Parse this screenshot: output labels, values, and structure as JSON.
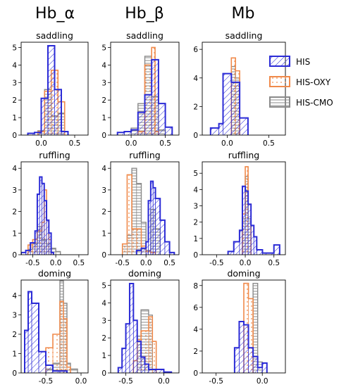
{
  "colors": {
    "HIS": "#2b2bd6",
    "HIS-OXY": "#f08a4b",
    "HIS-CMO": "#8a8a8a"
  },
  "legend": {
    "placement": "upper-right",
    "entries": [
      "HIS",
      "HIS-OXY",
      "HIS-CMO"
    ]
  },
  "column_titles": [
    "Hb_α",
    "Hb_β",
    "Mb"
  ],
  "chart_data": [
    {
      "type": "histogram",
      "column": "Hb_α",
      "title": "saddling",
      "xlim": [
        -0.3,
        0.7
      ],
      "ylim": [
        0,
        5.3
      ],
      "xticks": [
        0.0,
        0.5
      ],
      "xtick_labels": [
        "0.0",
        "0.5"
      ],
      "yticks": [
        0,
        1,
        2,
        3,
        4,
        5
      ],
      "ytick_labels": [
        "0",
        "1",
        "2",
        "3",
        "4",
        "5"
      ],
      "series": [
        {
          "name": "HIS",
          "edges": [
            -0.2,
            -0.1,
            0.0,
            0.1,
            0.2,
            0.3,
            0.4
          ],
          "values": [
            0.1,
            0.15,
            2.1,
            5.1,
            2.6,
            0.2
          ]
        },
        {
          "name": "HIS-OXY",
          "edges": [
            -0.05,
            0.05,
            0.15,
            0.25,
            0.35
          ],
          "values": [
            0.2,
            2.5,
            3.7,
            1.9
          ]
        },
        {
          "name": "HIS-CMO",
          "edges": [
            -0.05,
            0.05,
            0.15,
            0.25,
            0.35
          ],
          "values": [
            0.25,
            2.6,
            1.1,
            1.25
          ]
        }
      ]
    },
    {
      "type": "histogram",
      "column": "Hb_β",
      "title": "saddling",
      "xlim": [
        -0.3,
        0.7
      ],
      "ylim": [
        0,
        5.3
      ],
      "xticks": [
        0.0,
        0.5
      ],
      "xtick_labels": [
        "0.0",
        "0.5"
      ],
      "yticks": [
        0,
        1,
        2,
        3,
        4,
        5
      ],
      "ytick_labels": [
        "0",
        "1",
        "2",
        "3",
        "4",
        "5"
      ],
      "series": [
        {
          "name": "HIS",
          "edges": [
            -0.2,
            -0.1,
            0.0,
            0.1,
            0.2,
            0.3,
            0.4,
            0.5,
            0.6
          ],
          "values": [
            0.15,
            0.2,
            0.3,
            1.3,
            2.3,
            4.3,
            1.8,
            0.45
          ]
        },
        {
          "name": "HIS-OXY",
          "edges": [
            0.1,
            0.2,
            0.3,
            0.35,
            0.4
          ],
          "values": [
            0.2,
            4.0,
            5.0,
            0.2
          ]
        },
        {
          "name": "HIS-CMO",
          "edges": [
            0.0,
            0.1,
            0.2,
            0.3,
            0.4,
            0.5
          ],
          "values": [
            0.4,
            1.8,
            4.5,
            2.2,
            0.3
          ]
        }
      ]
    },
    {
      "type": "histogram",
      "column": "Mb",
      "title": "saddling",
      "xlim": [
        -0.3,
        0.7
      ],
      "ylim": [
        0,
        6.5
      ],
      "xticks": [
        0.0,
        0.5
      ],
      "xtick_labels": [
        "0.0",
        "0.5"
      ],
      "yticks": [
        0,
        2,
        4,
        6
      ],
      "ytick_labels": [
        "0",
        "2",
        "4",
        "6"
      ],
      "series": [
        {
          "name": "HIS",
          "edges": [
            -0.2,
            -0.1,
            -0.05,
            0.05,
            0.15,
            0.25
          ],
          "values": [
            0.5,
            0.8,
            4.3,
            3.7,
            1.2
          ]
        },
        {
          "name": "HIS-OXY",
          "edges": [
            0.05,
            0.1,
            0.15
          ],
          "values": [
            5.4,
            4.5
          ]
        },
        {
          "name": "HIS-CMO",
          "edges": [
            0.05,
            0.1,
            0.15
          ],
          "values": [
            4.8,
            4.0
          ]
        }
      ]
    },
    {
      "type": "histogram",
      "column": "Hb_α",
      "title": "ruffling",
      "xlim": [
        -0.75,
        0.7
      ],
      "ylim": [
        0,
        4.3
      ],
      "xticks": [
        -0.5,
        0.0,
        0.5
      ],
      "xtick_labels": [
        "-0.5",
        "0.0",
        "0.5"
      ],
      "yticks": [
        0,
        1,
        2,
        3,
        4
      ],
      "ytick_labels": [
        "0",
        "1",
        "2",
        "3",
        "4"
      ],
      "series": [
        {
          "name": "HIS",
          "edges": [
            -0.75,
            -0.65,
            -0.55,
            -0.45,
            -0.4,
            -0.35,
            -0.3,
            -0.25,
            -0.2,
            -0.15,
            -0.1,
            -0.05
          ],
          "values": [
            0.1,
            0.2,
            0.55,
            1.1,
            2.8,
            3.6,
            3.3,
            2.5,
            1.6,
            1.0,
            0.1
          ]
        },
        {
          "name": "HIS-OXY",
          "edges": [
            -0.6,
            -0.5,
            -0.4,
            -0.3,
            -0.25,
            -0.2,
            -0.15,
            -0.1
          ],
          "values": [
            0.45,
            0.7,
            1.1,
            1.5,
            3.0,
            1.6,
            0.7
          ]
        },
        {
          "name": "HIS-CMO",
          "edges": [
            -0.6,
            -0.5,
            -0.4,
            -0.3,
            -0.2,
            -0.1,
            0.0,
            0.1
          ],
          "values": [
            0.25,
            0.5,
            1.3,
            0.7,
            0.5,
            0.3,
            0.15
          ]
        }
      ]
    },
    {
      "type": "histogram",
      "column": "Hb_β",
      "title": "ruffling",
      "xlim": [
        -0.75,
        0.7
      ],
      "ylim": [
        0,
        4.3
      ],
      "xticks": [
        -0.5,
        0.0,
        0.5
      ],
      "xtick_labels": [
        "-0.5",
        "0.0",
        "0.5"
      ],
      "yticks": [
        0,
        1,
        2,
        3,
        4
      ],
      "ytick_labels": [
        "0",
        "1",
        "2",
        "3",
        "4"
      ],
      "series": [
        {
          "name": "HIS",
          "edges": [
            -0.2,
            -0.1,
            0.0,
            0.05,
            0.1,
            0.15,
            0.2,
            0.3,
            0.4,
            0.5,
            0.6
          ],
          "values": [
            0.2,
            0.3,
            0.6,
            2.5,
            3.4,
            3.1,
            2.6,
            1.6,
            0.6,
            0.1
          ]
        },
        {
          "name": "HIS-OXY",
          "edges": [
            -0.5,
            -0.4,
            -0.3,
            -0.2,
            -0.1,
            0.0,
            0.1,
            0.2
          ],
          "values": [
            0.5,
            3.7,
            1.2,
            1.2,
            0.4,
            0.15,
            0.1
          ]
        },
        {
          "name": "HIS-CMO",
          "edges": [
            -0.5,
            -0.4,
            -0.3,
            -0.2,
            -0.1,
            0.0,
            0.1,
            0.2,
            0.3
          ],
          "values": [
            0.5,
            0.9,
            4.0,
            3.3,
            1.5,
            0.2,
            2.1,
            1.2
          ]
        }
      ]
    },
    {
      "type": "histogram",
      "column": "Mb",
      "title": "ruffling",
      "xlim": [
        -0.75,
        0.7
      ],
      "ylim": [
        0,
        5.7
      ],
      "xticks": [
        -0.5,
        0.0,
        0.5
      ],
      "xtick_labels": [
        "-0.5",
        "0.0",
        "0.5"
      ],
      "yticks": [
        0,
        1,
        2,
        3,
        4,
        5
      ],
      "ytick_labels": [
        "0",
        "1",
        "2",
        "3",
        "4",
        "5"
      ],
      "series": [
        {
          "name": "HIS",
          "edges": [
            -0.3,
            -0.2,
            -0.1,
            -0.05,
            0.0,
            0.05,
            0.1,
            0.15,
            0.2,
            0.3,
            0.5,
            0.6
          ],
          "values": [
            0.2,
            0.8,
            1.5,
            4.2,
            3.9,
            3.1,
            1.8,
            1.1,
            0.3,
            0.1,
            0.6
          ]
        },
        {
          "name": "HIS-OXY",
          "edges": [
            -0.05,
            0.0,
            0.05,
            0.1
          ],
          "values": [
            2.5,
            5.4,
            3.1
          ]
        },
        {
          "name": "HIS-CMO",
          "edges": [
            -0.05,
            0.0,
            0.05,
            0.1
          ],
          "values": [
            2.2,
            4.8,
            2.2
          ]
        }
      ]
    },
    {
      "type": "histogram",
      "column": "Hb_α",
      "title": "doming",
      "xlim": [
        -0.85,
        0.1
      ],
      "ylim": [
        0,
        4.8
      ],
      "xticks": [
        -0.5,
        0.0
      ],
      "xtick_labels": [
        "-0.5",
        "0.0"
      ],
      "yticks": [
        0,
        1,
        2,
        3,
        4
      ],
      "ytick_labels": [
        "0",
        "1",
        "2",
        "3",
        "4"
      ],
      "series": [
        {
          "name": "HIS",
          "edges": [
            -0.8,
            -0.75,
            -0.7,
            -0.6,
            -0.5,
            -0.4,
            -0.3,
            -0.2
          ],
          "values": [
            2.2,
            4.2,
            3.6,
            1.1,
            0.4,
            0.1,
            0.1
          ]
        },
        {
          "name": "HIS-OXY",
          "edges": [
            -0.5,
            -0.4,
            -0.3,
            -0.25,
            -0.2,
            -0.15
          ],
          "values": [
            1.3,
            2.0,
            3.7,
            2.8,
            0.3
          ]
        },
        {
          "name": "HIS-CMO",
          "edges": [
            -0.5,
            -0.4,
            -0.3,
            -0.25,
            -0.2,
            -0.15,
            -0.05
          ],
          "values": [
            0.2,
            0.5,
            4.75,
            3.6,
            0.5,
            0.2
          ]
        }
      ]
    },
    {
      "type": "histogram",
      "column": "Hb_β",
      "title": "doming",
      "xlim": [
        -0.7,
        0.2
      ],
      "ylim": [
        0,
        5.3
      ],
      "xticks": [
        -0.5,
        0.0
      ],
      "xtick_labels": [
        "-0.5",
        "0.0"
      ],
      "yticks": [
        0,
        1,
        2,
        3,
        4,
        5
      ],
      "ytick_labels": [
        "0",
        "1",
        "2",
        "3",
        "4",
        "5"
      ],
      "series": [
        {
          "name": "HIS",
          "edges": [
            -0.6,
            -0.55,
            -0.5,
            -0.45,
            -0.4,
            -0.35,
            -0.3,
            -0.25,
            -0.2,
            -0.1,
            0.0,
            0.1
          ],
          "values": [
            0.3,
            1.4,
            2.8,
            5.1,
            3.0,
            1.8,
            0.9,
            0.5,
            0.2,
            0.2,
            0.05
          ]
        },
        {
          "name": "HIS-OXY",
          "edges": [
            -0.4,
            -0.35,
            -0.3,
            -0.2,
            -0.15,
            -0.1
          ],
          "values": [
            0.7,
            1.9,
            2.4,
            3.2,
            1.8
          ]
        },
        {
          "name": "HIS-CMO",
          "edges": [
            -0.35,
            -0.3,
            -0.2,
            -0.15,
            -0.1
          ],
          "values": [
            2.1,
            3.6,
            3.3,
            0.2
          ]
        }
      ]
    },
    {
      "type": "histogram",
      "column": "Mb",
      "title": "doming",
      "xlim": [
        -0.65,
        0.25
      ],
      "ylim": [
        0,
        8.5
      ],
      "xticks": [
        -0.5,
        0.0
      ],
      "xtick_labels": [
        "-0.5",
        "0.0"
      ],
      "yticks": [
        0,
        2,
        4,
        6,
        8
      ],
      "ytick_labels": [
        "0",
        "2",
        "4",
        "6",
        "8"
      ],
      "series": [
        {
          "name": "HIS",
          "edges": [
            -0.3,
            -0.25,
            -0.2,
            -0.15,
            -0.1,
            -0.05,
            0.0,
            0.05
          ],
          "values": [
            2.3,
            4.7,
            4.4,
            2.3,
            1.5,
            0.5,
            0.9
          ]
        },
        {
          "name": "HIS-OXY",
          "edges": [
            -0.2,
            -0.15,
            -0.1
          ],
          "values": [
            8.2,
            6.8
          ]
        },
        {
          "name": "HIS-CMO",
          "edges": [
            -0.1,
            -0.05,
            0.0
          ],
          "values": [
            8.2,
            1.0
          ]
        }
      ]
    }
  ]
}
